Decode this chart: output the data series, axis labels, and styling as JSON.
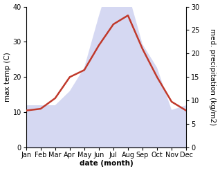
{
  "months": [
    "Jan",
    "Feb",
    "Mar",
    "Apr",
    "May",
    "Jun",
    "Jul",
    "Aug",
    "Sep",
    "Oct",
    "Nov",
    "Dec"
  ],
  "temp": [
    10.5,
    11.0,
    14.0,
    20.0,
    22.0,
    29.0,
    35.0,
    37.5,
    28.0,
    20.0,
    13.0,
    10.5
  ],
  "precip": [
    9.0,
    9.0,
    9.0,
    12.0,
    17.0,
    28.0,
    38.0,
    33.0,
    22.0,
    17.0,
    8.0,
    9.0
  ],
  "temp_color": "#c0392b",
  "precip_fill_color": "#c8ccee",
  "precip_fill_alpha": 0.75,
  "precip_edge_color": "#b0b8e8",
  "temp_lw": 1.8,
  "left_ylabel": "max temp (C)",
  "right_ylabel": "med. precipitation (kg/m2)",
  "xlabel": "date (month)",
  "left_ylim": [
    0,
    40
  ],
  "right_ylim": [
    0,
    30
  ],
  "left_yticks": [
    0,
    10,
    20,
    30,
    40
  ],
  "right_yticks": [
    0,
    5,
    10,
    15,
    20,
    25,
    30
  ],
  "bg_color": "#ffffff",
  "label_fontsize": 7.5,
  "tick_fontsize": 7
}
